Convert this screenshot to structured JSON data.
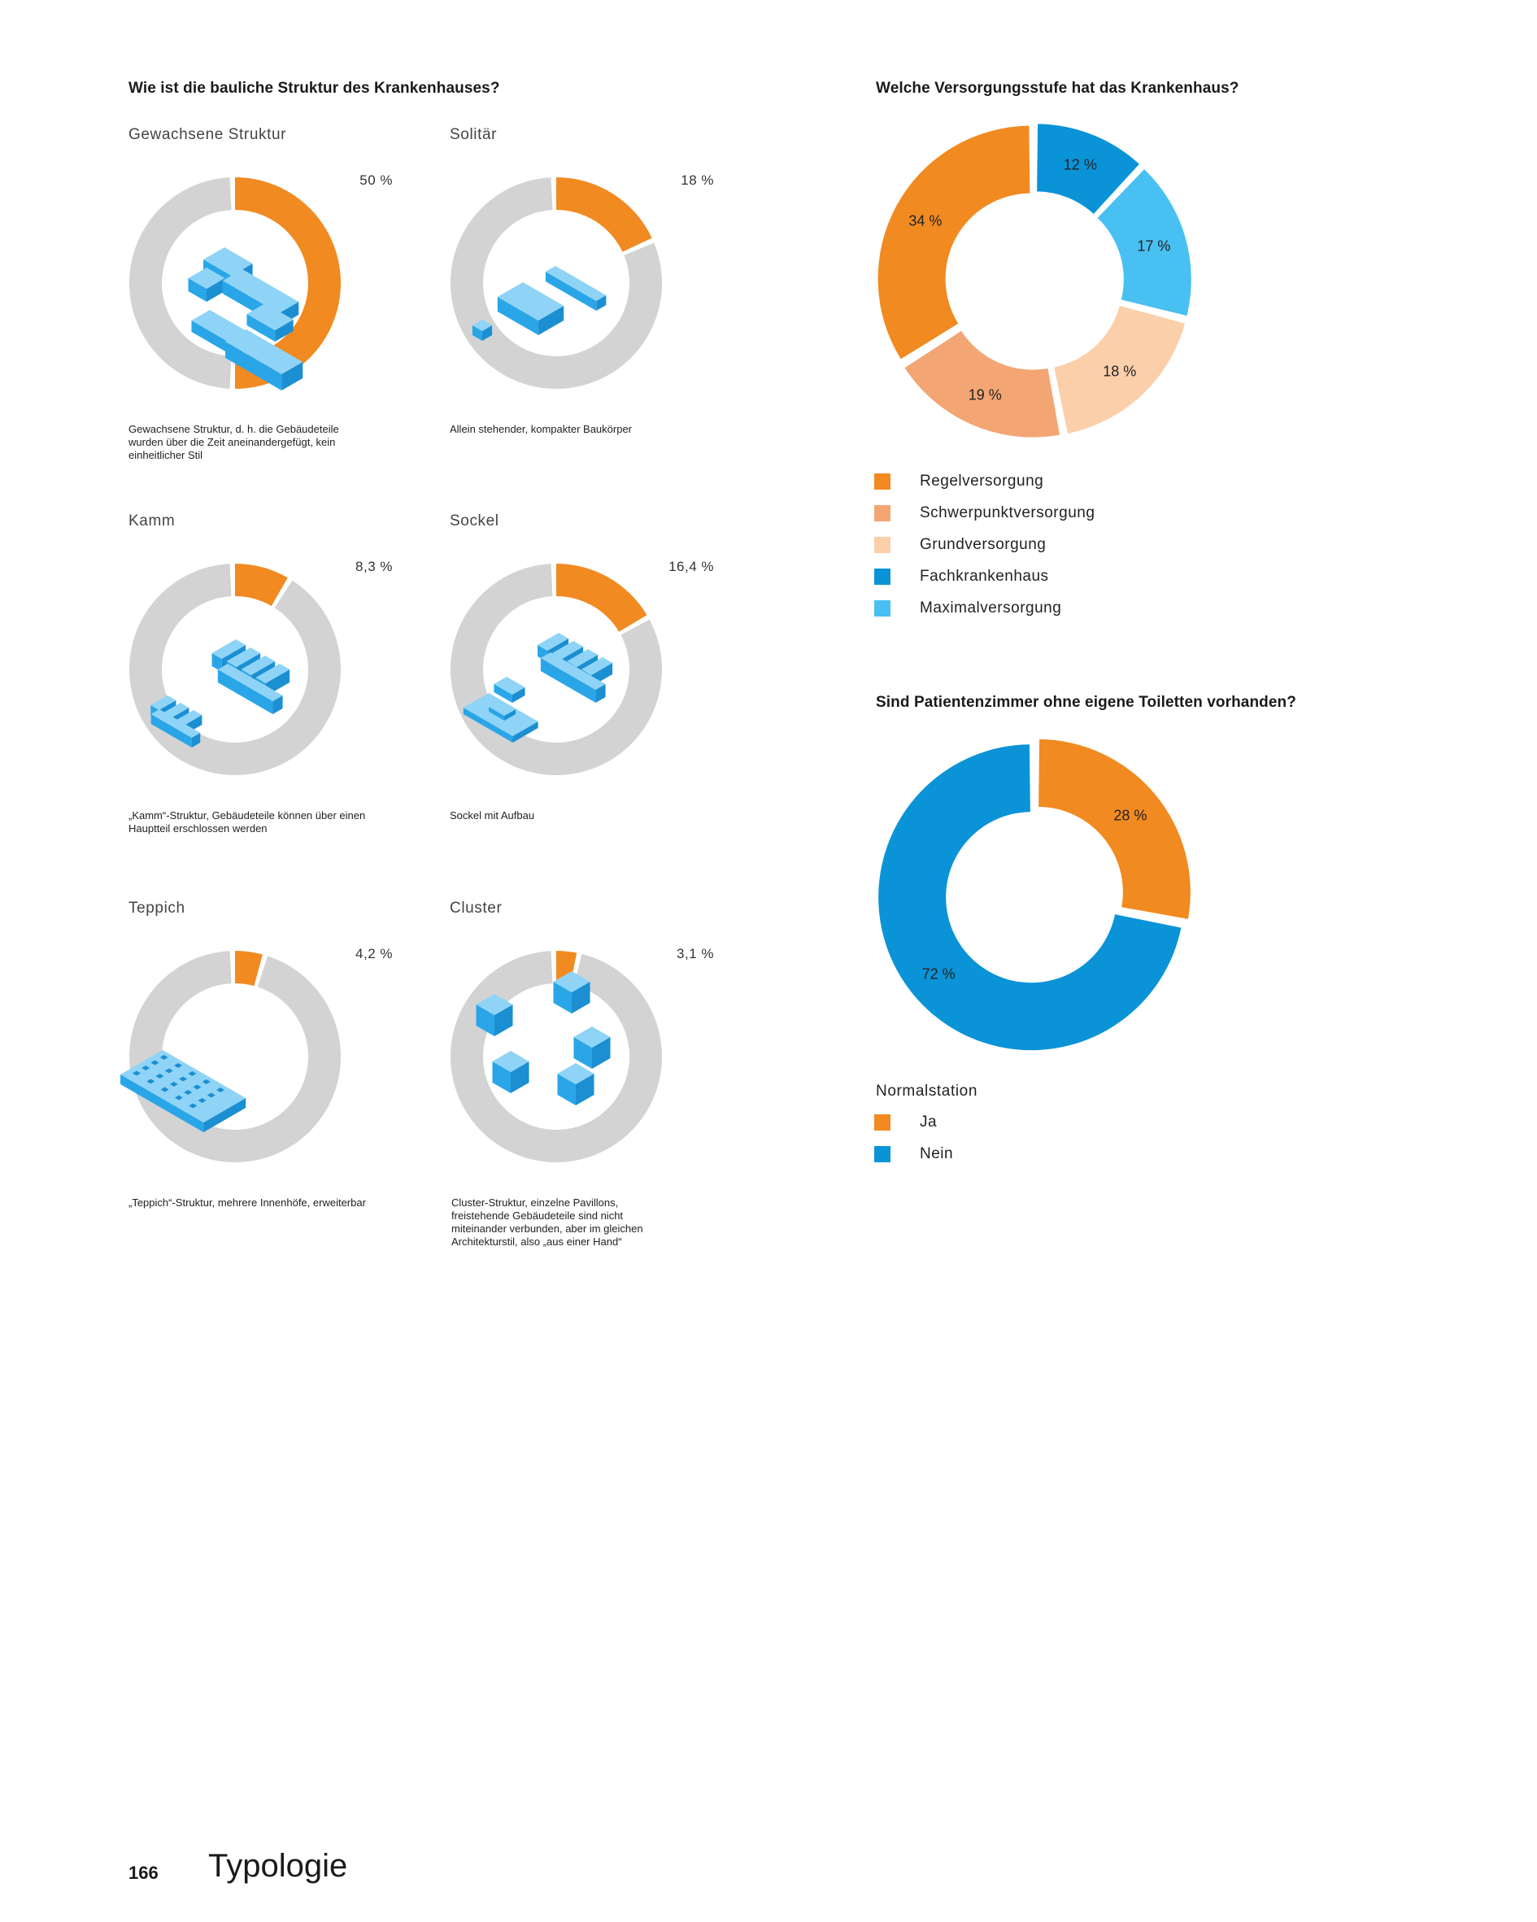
{
  "left_heading": "Wie ist die bauliche Struktur des Krankenhauses?",
  "structures": [
    {
      "title": "Gewachsene Struktur",
      "pct_label": "50 %",
      "caption": "Gewachsene Struktur, d. h. die Gebäudeteile wurden über die Zeit aneinandergefügt, kein einheitlicher Stil",
      "icon": "grown-structure-building-icon"
    },
    {
      "title": "Solitär",
      "pct_label": "18 %",
      "caption": "Allein stehender, kompakter Baukörper",
      "icon": "solitary-building-icon"
    },
    {
      "title": "Kamm",
      "pct_label": "8,3 %",
      "caption": "„Kamm“-Struktur, Gebäudeteile können über einen Hauptteil erschlossen werden",
      "icon": "comb-building-icon"
    },
    {
      "title": "Sockel",
      "pct_label": "16,4 %",
      "caption": "Sockel mit Aufbau",
      "icon": "plinth-building-icon"
    },
    {
      "title": "Teppich",
      "pct_label": "4,2 %",
      "caption": "„Teppich“-Struktur, mehrere Innenhöfe, erweiterbar",
      "icon": "carpet-building-icon"
    },
    {
      "title": "Cluster",
      "pct_label": "3,1 %",
      "caption": "Cluster-Struktur, einzelne Pavillons, freistehende Gebäudeteile sind nicht miteinander verbunden, aber im gleichen Architekturstil, also „aus einer Hand“",
      "icon": "cluster-building-icon"
    }
  ],
  "care_heading": "Welche Versorgungsstufe hat das Krankenhaus?",
  "toilet_heading": "Sind Patientenzimmer ohne eigene Toiletten vorhanden?",
  "toilet_legend_title": "Normalstation",
  "colors": {
    "orange": "#f18a20",
    "salmon": "#f3a574",
    "peach": "#fbcfaa",
    "blue": "#0b93d8",
    "lightblue": "#48c0f1",
    "grey": "#d3d3d3",
    "building_top": "#8fd4f6",
    "building_side": "#2aa6e8"
  },
  "chart_data": [
    {
      "type": "pie",
      "title": "Gewachsene Struktur",
      "categories": [
        "Gewachsene Struktur"
      ],
      "values": [
        50
      ]
    },
    {
      "type": "pie",
      "title": "Solitär",
      "categories": [
        "Solitär"
      ],
      "values": [
        18
      ]
    },
    {
      "type": "pie",
      "title": "Kamm",
      "categories": [
        "Kamm"
      ],
      "values": [
        8.3
      ]
    },
    {
      "type": "pie",
      "title": "Sockel",
      "categories": [
        "Sockel"
      ],
      "values": [
        16.4
      ]
    },
    {
      "type": "pie",
      "title": "Teppich",
      "categories": [
        "Teppich"
      ],
      "values": [
        4.2
      ]
    },
    {
      "type": "pie",
      "title": "Cluster",
      "categories": [
        "Cluster"
      ],
      "values": [
        3.1
      ]
    },
    {
      "type": "pie",
      "title": "Welche Versorgungsstufe hat das Krankenhaus?",
      "categories": [
        "Fachkrankenhaus",
        "Maximalversorgung",
        "Grundversorgung",
        "Schwerpunktversorgung",
        "Regelversorgung"
      ],
      "values": [
        12,
        17,
        18,
        19,
        34
      ],
      "labels": [
        "12 %",
        "17 %",
        "18 %",
        "19 %",
        "34 %"
      ],
      "colors": [
        "#0b93d8",
        "#48c0f1",
        "#fbcfaa",
        "#f3a574",
        "#f18a20"
      ],
      "legend": [
        "Regelversorgung",
        "Schwerpunktversorgung",
        "Grundversorgung",
        "Fachkrankenhaus",
        "Maximalversorgung"
      ],
      "legend_colors": [
        "#f18a20",
        "#f3a574",
        "#fbcfaa",
        "#0b93d8",
        "#48c0f1"
      ],
      "legend_position": "bottom"
    },
    {
      "type": "pie",
      "title": "Sind Patientenzimmer ohne eigene Toiletten vorhanden?",
      "categories": [
        "Ja",
        "Nein"
      ],
      "values": [
        28,
        72
      ],
      "labels": [
        "28 %",
        "72 %"
      ],
      "colors": [
        "#f18a20",
        "#0b93d8"
      ],
      "legend": [
        "Ja",
        "Nein"
      ],
      "legend_colors": [
        "#f18a20",
        "#0b93d8"
      ],
      "legend_position": "bottom"
    }
  ],
  "footer": {
    "page_number": "166",
    "section_title": "Typologie"
  }
}
